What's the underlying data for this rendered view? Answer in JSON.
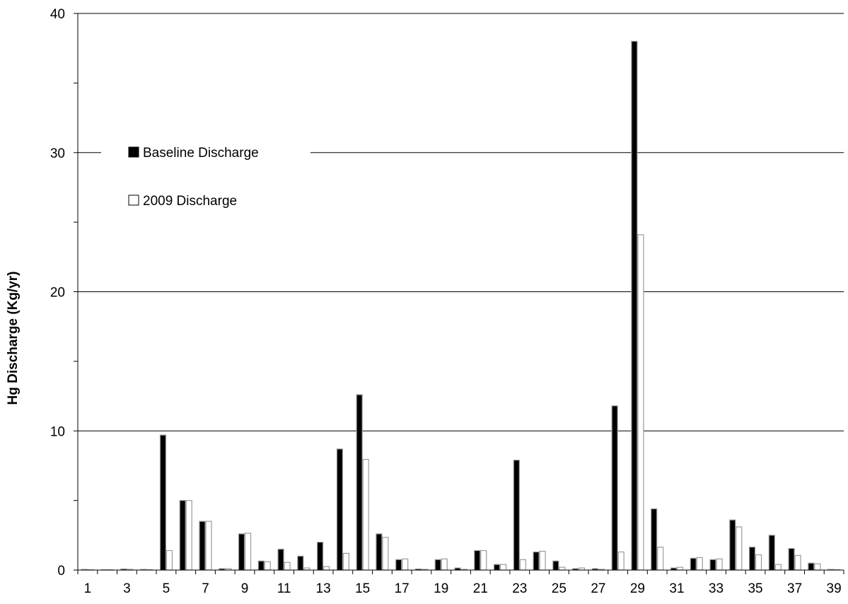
{
  "chart_data": {
    "type": "bar",
    "ylabel": "Hg Discharge (Kg/yr)",
    "xlabel": "",
    "ylim": [
      0,
      40
    ],
    "yticks": [
      0,
      10,
      20,
      30,
      40
    ],
    "grid": true,
    "legend_placement": "top-left",
    "categories": [
      "1",
      "2",
      "3",
      "4",
      "5",
      "6",
      "7",
      "8",
      "9",
      "10",
      "11",
      "12",
      "13",
      "14",
      "15",
      "16",
      "17",
      "18",
      "19",
      "20",
      "21",
      "22",
      "23",
      "24",
      "25",
      "26",
      "27",
      "28",
      "29",
      "30",
      "31",
      "32",
      "33",
      "34",
      "35",
      "36",
      "37",
      "38",
      "39"
    ],
    "x_tick_labels": [
      "1",
      "3",
      "5",
      "7",
      "9",
      "11",
      "13",
      "15",
      "17",
      "19",
      "21",
      "23",
      "25",
      "27",
      "29",
      "31",
      "33",
      "35",
      "37",
      "39"
    ],
    "series": [
      {
        "name": "Baseline Discharge",
        "color": "#000000",
        "values": [
          0.05,
          0.02,
          0.08,
          0.05,
          9.7,
          5.0,
          3.5,
          0.1,
          2.6,
          0.65,
          1.5,
          1.0,
          2.0,
          8.7,
          12.6,
          2.6,
          0.75,
          0.08,
          0.75,
          0.15,
          1.4,
          0.4,
          7.9,
          1.3,
          0.65,
          0.1,
          0.1,
          11.8,
          38.0,
          4.4,
          0.15,
          0.85,
          0.75,
          3.6,
          1.65,
          2.5,
          1.55,
          0.5,
          0.05
        ]
      },
      {
        "name": "2009 Discharge",
        "color": "#ffffff",
        "values": [
          0.02,
          0.01,
          0.05,
          0.03,
          1.4,
          5.0,
          3.5,
          0.1,
          2.65,
          0.6,
          0.55,
          0.15,
          0.25,
          1.2,
          7.95,
          2.35,
          0.8,
          0.05,
          0.8,
          0.05,
          1.4,
          0.4,
          0.75,
          1.35,
          0.2,
          0.15,
          0.05,
          1.3,
          24.1,
          1.65,
          0.2,
          0.9,
          0.8,
          3.1,
          1.1,
          0.4,
          1.05,
          0.45,
          0.02
        ]
      }
    ]
  }
}
